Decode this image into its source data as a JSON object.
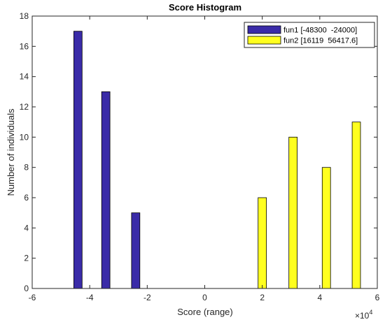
{
  "chart_data": {
    "type": "bar",
    "title": "Score Histogram",
    "xlabel": "Score (range)",
    "ylabel": "Number of individuals",
    "x_exponent_base": "×10",
    "x_exponent_power": "4",
    "xlim": [
      -60000,
      60000
    ],
    "ylim": [
      0,
      18
    ],
    "x_ticks": [
      -60000,
      -40000,
      -20000,
      0,
      20000,
      40000,
      60000
    ],
    "x_tick_labels": [
      "-6",
      "-4",
      "-2",
      "0",
      "2",
      "4",
      "6"
    ],
    "y_ticks": [
      0,
      2,
      4,
      6,
      8,
      10,
      12,
      14,
      16,
      18
    ],
    "y_tick_labels": [
      "0",
      "2",
      "4",
      "6",
      "8",
      "10",
      "12",
      "14",
      "16",
      "18"
    ],
    "bar_width": 2900,
    "grid": false,
    "legend_position": "top-right",
    "series": [
      {
        "name": "fun1 [-48300  -24000]",
        "color": "#3a2ba8",
        "x": [
          -44100,
          -34400,
          -24000
        ],
        "values": [
          17,
          13,
          5
        ]
      },
      {
        "name": "fun2 [16119  56417.6]",
        "color": "#ffff1f",
        "x": [
          20000,
          30700,
          42300,
          52700
        ],
        "values": [
          6,
          10,
          8,
          11
        ]
      }
    ]
  }
}
